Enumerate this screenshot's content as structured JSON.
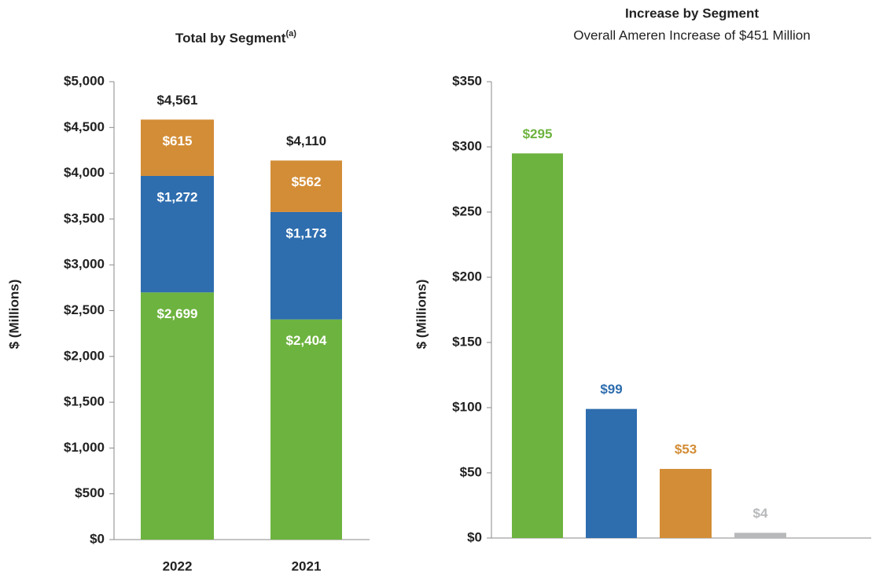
{
  "chart_data": [
    {
      "type": "stacked_bar",
      "title": "Total by Segment",
      "title_note": "(a)",
      "y_label": "$ (Millions)",
      "categories": [
        "2022",
        "2021"
      ],
      "series": [
        {
          "color": "#6db33f",
          "values": [
            2699,
            2404
          ],
          "value_labels": [
            "$2,699",
            "$2,404"
          ]
        },
        {
          "color": "#2e6dae",
          "values": [
            1272,
            1173
          ],
          "value_labels": [
            "$1,272",
            "$1,173"
          ]
        },
        {
          "color": "#d38d36",
          "values": [
            615,
            562
          ],
          "value_labels": [
            "$615",
            "$562"
          ]
        }
      ],
      "totals": [
        4561,
        4110
      ],
      "totals_labels": [
        "$4,561",
        "$4,110"
      ],
      "ylim": [
        0,
        5000
      ],
      "yticks": [
        {
          "value": 0,
          "label": "$0"
        },
        {
          "value": 500,
          "label": "$500"
        },
        {
          "value": 1000,
          "label": "$1,000"
        },
        {
          "value": 1500,
          "label": "$1,500"
        },
        {
          "value": 2000,
          "label": "$2,000"
        },
        {
          "value": 2500,
          "label": "$2,500"
        },
        {
          "value": 3000,
          "label": "$3,000"
        },
        {
          "value": 3500,
          "label": "$3,500"
        },
        {
          "value": 4000,
          "label": "$4,000"
        },
        {
          "value": 4500,
          "label": "$4,500"
        },
        {
          "value": 5000,
          "label": "$5,000"
        }
      ]
    },
    {
      "type": "bar",
      "title": "Increase by Segment",
      "subtitle": "Overall Ameren Increase of $451 Million",
      "y_label": "$ (Millions)",
      "categories": [
        null,
        null,
        null,
        null
      ],
      "values": [
        295,
        99,
        53,
        4
      ],
      "value_labels": [
        "$295",
        "$99",
        "$53",
        "$4"
      ],
      "colors": [
        "#6db33f",
        "#2e6dae",
        "#d38d36",
        "#b7b9bb"
      ],
      "ylim": [
        0,
        350
      ],
      "yticks": [
        {
          "value": 0,
          "label": "$0"
        },
        {
          "value": 50,
          "label": "$50"
        },
        {
          "value": 100,
          "label": "$100"
        },
        {
          "value": 150,
          "label": "$150"
        },
        {
          "value": 200,
          "label": "$200"
        },
        {
          "value": 250,
          "label": "$250"
        },
        {
          "value": 300,
          "label": "$300"
        },
        {
          "value": 350,
          "label": "$350"
        }
      ]
    }
  ]
}
